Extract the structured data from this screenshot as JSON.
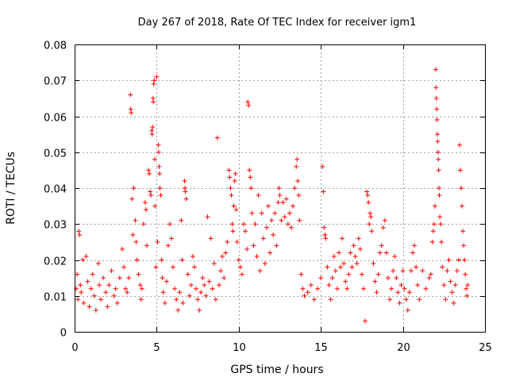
{
  "chart_data": {
    "type": "scatter",
    "title": "Day 267 of 2018, Rate Of TEC Index for receiver igm1",
    "xlabel": "GPS time / hours",
    "ylabel": "ROTI / TECUs",
    "xlim": [
      0,
      25
    ],
    "ylim": [
      0,
      0.08
    ],
    "x_ticks": [
      0,
      5,
      10,
      15,
      20,
      25
    ],
    "x_tick_labels": [
      "0",
      "5",
      "10",
      "15",
      "20",
      "25"
    ],
    "y_ticks": [
      0,
      0.01,
      0.02,
      0.03,
      0.04,
      0.05,
      0.06,
      0.07,
      0.08
    ],
    "y_tick_labels": [
      "0",
      "0.01",
      "0.02",
      "0.03",
      "0.04",
      "0.05",
      "0.06",
      "0.07",
      "0.08"
    ],
    "grid": true,
    "marker": "plus",
    "color": "#ff0000",
    "series": [
      {
        "name": "ROTI",
        "points": [
          [
            0.1,
            0.012
          ],
          [
            0.15,
            0.016
          ],
          [
            0.2,
            0.009
          ],
          [
            0.25,
            0.028
          ],
          [
            0.3,
            0.027
          ],
          [
            0.35,
            0.013
          ],
          [
            0.4,
            0.011
          ],
          [
            0.5,
            0.02
          ],
          [
            0.55,
            0.008
          ],
          [
            0.7,
            0.021
          ],
          [
            0.8,
            0.014
          ],
          [
            0.9,
            0.007
          ],
          [
            1.0,
            0.012
          ],
          [
            1.1,
            0.016
          ],
          [
            1.2,
            0.01
          ],
          [
            1.3,
            0.006
          ],
          [
            1.45,
            0.019
          ],
          [
            1.5,
            0.013
          ],
          [
            1.6,
            0.009
          ],
          [
            1.75,
            0.015
          ],
          [
            1.9,
            0.011
          ],
          [
            2.0,
            0.007
          ],
          [
            2.1,
            0.013
          ],
          [
            2.25,
            0.017
          ],
          [
            2.4,
            0.01
          ],
          [
            2.5,
            0.012
          ],
          [
            2.6,
            0.008
          ],
          [
            2.75,
            0.015
          ],
          [
            2.9,
            0.023
          ],
          [
            3.0,
            0.018
          ],
          [
            3.1,
            0.012
          ],
          [
            3.2,
            0.011
          ],
          [
            3.3,
            0.015
          ],
          [
            3.4,
            0.066
          ],
          [
            3.42,
            0.062
          ],
          [
            3.45,
            0.061
          ],
          [
            3.5,
            0.037
          ],
          [
            3.55,
            0.027
          ],
          [
            3.6,
            0.04
          ],
          [
            3.7,
            0.031
          ],
          [
            3.75,
            0.025
          ],
          [
            3.8,
            0.02
          ],
          [
            3.9,
            0.016
          ],
          [
            4.0,
            0.013
          ],
          [
            4.05,
            0.009
          ],
          [
            4.1,
            0.012
          ],
          [
            4.2,
            0.03
          ],
          [
            4.3,
            0.036
          ],
          [
            4.35,
            0.034
          ],
          [
            4.4,
            0.024
          ],
          [
            4.5,
            0.045
          ],
          [
            4.55,
            0.044
          ],
          [
            4.6,
            0.039
          ],
          [
            4.65,
            0.038
          ],
          [
            4.7,
            0.056
          ],
          [
            4.72,
            0.055
          ],
          [
            4.75,
            0.057
          ],
          [
            4.78,
            0.065
          ],
          [
            4.8,
            0.064
          ],
          [
            4.82,
            0.069
          ],
          [
            4.85,
            0.07
          ],
          [
            4.88,
            0.048
          ],
          [
            4.9,
            0.035
          ],
          [
            4.95,
            0.018
          ],
          [
            5.0,
            0.071
          ],
          [
            5.05,
            0.025
          ],
          [
            5.1,
            0.052
          ],
          [
            5.12,
            0.05
          ],
          [
            5.15,
            0.046
          ],
          [
            5.18,
            0.044
          ],
          [
            5.2,
            0.04
          ],
          [
            5.25,
            0.038
          ],
          [
            5.3,
            0.02
          ],
          [
            5.35,
            0.015
          ],
          [
            5.4,
            0.011
          ],
          [
            5.5,
            0.008
          ],
          [
            5.6,
            0.014
          ],
          [
            5.7,
            0.024
          ],
          [
            5.8,
            0.03
          ],
          [
            5.9,
            0.026
          ],
          [
            6.0,
            0.018
          ],
          [
            6.1,
            0.012
          ],
          [
            6.2,
            0.009
          ],
          [
            6.3,
            0.006
          ],
          [
            6.4,
            0.011
          ],
          [
            6.5,
            0.031
          ],
          [
            6.55,
            0.02
          ],
          [
            6.6,
            0.008
          ],
          [
            6.7,
            0.042
          ],
          [
            6.72,
            0.04
          ],
          [
            6.75,
            0.039
          ],
          [
            6.8,
            0.037
          ],
          [
            6.9,
            0.016
          ],
          [
            7.0,
            0.01
          ],
          [
            7.1,
            0.013
          ],
          [
            7.2,
            0.021
          ],
          [
            7.3,
            0.018
          ],
          [
            7.4,
            0.012
          ],
          [
            7.5,
            0.009
          ],
          [
            7.6,
            0.006
          ],
          [
            7.7,
            0.011
          ],
          [
            7.8,
            0.015
          ],
          [
            7.9,
            0.013
          ],
          [
            8.0,
            0.01
          ],
          [
            8.1,
            0.032
          ],
          [
            8.2,
            0.014
          ],
          [
            8.3,
            0.026
          ],
          [
            8.4,
            0.012
          ],
          [
            8.5,
            0.019
          ],
          [
            8.6,
            0.009
          ],
          [
            8.7,
            0.054
          ],
          [
            8.8,
            0.013
          ],
          [
            8.9,
            0.017
          ],
          [
            9.0,
            0.021
          ],
          [
            9.1,
            0.015
          ],
          [
            9.2,
            0.022
          ],
          [
            9.3,
            0.025
          ],
          [
            9.4,
            0.045
          ],
          [
            9.45,
            0.043
          ],
          [
            9.5,
            0.04
          ],
          [
            9.55,
            0.038
          ],
          [
            9.6,
            0.03
          ],
          [
            9.65,
            0.028
          ],
          [
            9.7,
            0.035
          ],
          [
            9.75,
            0.042
          ],
          [
            9.8,
            0.044
          ],
          [
            9.85,
            0.034
          ],
          [
            9.9,
            0.025
          ],
          [
            10.0,
            0.02
          ],
          [
            10.1,
            0.018
          ],
          [
            10.2,
            0.016
          ],
          [
            10.3,
            0.03
          ],
          [
            10.4,
            0.028
          ],
          [
            10.5,
            0.023
          ],
          [
            10.55,
            0.064
          ],
          [
            10.6,
            0.063
          ],
          [
            10.65,
            0.045
          ],
          [
            10.7,
            0.043
          ],
          [
            10.75,
            0.04
          ],
          [
            10.8,
            0.033
          ],
          [
            10.9,
            0.024
          ],
          [
            11.0,
            0.03
          ],
          [
            11.1,
            0.021
          ],
          [
            11.2,
            0.038
          ],
          [
            11.3,
            0.017
          ],
          [
            11.4,
            0.033
          ],
          [
            11.5,
            0.026
          ],
          [
            11.6,
            0.019
          ],
          [
            11.7,
            0.029
          ],
          [
            11.8,
            0.035
          ],
          [
            11.9,
            0.022
          ],
          [
            12.0,
            0.031
          ],
          [
            12.1,
            0.027
          ],
          [
            12.2,
            0.033
          ],
          [
            12.3,
            0.024
          ],
          [
            12.4,
            0.036
          ],
          [
            12.45,
            0.04
          ],
          [
            12.5,
            0.038
          ],
          [
            12.6,
            0.031
          ],
          [
            12.7,
            0.036
          ],
          [
            12.8,
            0.032
          ],
          [
            12.9,
            0.037
          ],
          [
            13.0,
            0.03
          ],
          [
            13.1,
            0.033
          ],
          [
            13.2,
            0.029
          ],
          [
            13.3,
            0.035
          ],
          [
            13.4,
            0.04
          ],
          [
            13.5,
            0.046
          ],
          [
            13.55,
            0.048
          ],
          [
            13.6,
            0.042
          ],
          [
            13.65,
            0.038
          ],
          [
            13.7,
            0.031
          ],
          [
            13.8,
            0.016
          ],
          [
            13.9,
            0.012
          ],
          [
            14.0,
            0.01
          ],
          [
            14.2,
            0.011
          ],
          [
            14.4,
            0.013
          ],
          [
            14.6,
            0.009
          ],
          [
            14.8,
            0.012
          ],
          [
            15.0,
            0.015
          ],
          [
            15.1,
            0.046
          ],
          [
            15.15,
            0.039
          ],
          [
            15.2,
            0.029
          ],
          [
            15.25,
            0.027
          ],
          [
            15.3,
            0.026
          ],
          [
            15.4,
            0.018
          ],
          [
            15.5,
            0.013
          ],
          [
            15.6,
            0.009
          ],
          [
            15.7,
            0.015
          ],
          [
            15.8,
            0.021
          ],
          [
            15.9,
            0.017
          ],
          [
            16.0,
            0.012
          ],
          [
            16.1,
            0.022
          ],
          [
            16.2,
            0.018
          ],
          [
            16.3,
            0.026
          ],
          [
            16.4,
            0.019
          ],
          [
            16.5,
            0.014
          ],
          [
            16.6,
            0.012
          ],
          [
            16.7,
            0.016
          ],
          [
            16.8,
            0.022
          ],
          [
            16.9,
            0.018
          ],
          [
            17.0,
            0.024
          ],
          [
            17.1,
            0.021
          ],
          [
            17.2,
            0.019
          ],
          [
            17.3,
            0.026
          ],
          [
            17.4,
            0.023
          ],
          [
            17.5,
            0.016
          ],
          [
            17.6,
            0.012
          ],
          [
            17.7,
            0.003
          ],
          [
            17.8,
            0.039
          ],
          [
            17.85,
            0.038
          ],
          [
            17.9,
            0.036
          ],
          [
            17.95,
            0.03
          ],
          [
            18.0,
            0.033
          ],
          [
            18.05,
            0.032
          ],
          [
            18.1,
            0.028
          ],
          [
            18.2,
            0.019
          ],
          [
            18.3,
            0.014
          ],
          [
            18.4,
            0.011
          ],
          [
            18.5,
            0.016
          ],
          [
            18.6,
            0.022
          ],
          [
            18.7,
            0.024
          ],
          [
            18.8,
            0.029
          ],
          [
            18.9,
            0.031
          ],
          [
            19.0,
            0.022
          ],
          [
            19.1,
            0.015
          ],
          [
            19.2,
            0.009
          ],
          [
            19.3,
            0.012
          ],
          [
            19.4,
            0.017
          ],
          [
            19.5,
            0.021
          ],
          [
            19.6,
            0.015
          ],
          [
            19.7,
            0.011
          ],
          [
            19.8,
            0.008
          ],
          [
            19.9,
            0.013
          ],
          [
            20.0,
            0.017
          ],
          [
            20.1,
            0.012
          ],
          [
            20.2,
            0.009
          ],
          [
            20.3,
            0.006
          ],
          [
            20.4,
            0.011
          ],
          [
            20.5,
            0.017
          ],
          [
            20.6,
            0.022
          ],
          [
            20.7,
            0.024
          ],
          [
            20.8,
            0.018
          ],
          [
            20.9,
            0.013
          ],
          [
            21.0,
            0.009
          ],
          [
            21.2,
            0.017
          ],
          [
            21.4,
            0.012
          ],
          [
            21.6,
            0.015
          ],
          [
            21.7,
            0.016
          ],
          [
            21.8,
            0.025
          ],
          [
            21.85,
            0.028
          ],
          [
            21.9,
            0.03
          ],
          [
            21.95,
            0.035
          ],
          [
            22.0,
            0.073
          ],
          [
            22.02,
            0.068
          ],
          [
            22.04,
            0.065
          ],
          [
            22.06,
            0.062
          ],
          [
            22.08,
            0.059
          ],
          [
            22.1,
            0.055
          ],
          [
            22.12,
            0.053
          ],
          [
            22.14,
            0.05
          ],
          [
            22.16,
            0.048
          ],
          [
            22.18,
            0.045
          ],
          [
            22.2,
            0.04
          ],
          [
            22.22,
            0.038
          ],
          [
            22.25,
            0.032
          ],
          [
            22.3,
            0.03
          ],
          [
            22.35,
            0.025
          ],
          [
            22.4,
            0.018
          ],
          [
            22.5,
            0.013
          ],
          [
            22.6,
            0.009
          ],
          [
            22.7,
            0.017
          ],
          [
            22.8,
            0.02
          ],
          [
            22.9,
            0.014
          ],
          [
            23.0,
            0.011
          ],
          [
            23.1,
            0.008
          ],
          [
            23.2,
            0.013
          ],
          [
            23.3,
            0.017
          ],
          [
            23.4,
            0.02
          ],
          [
            23.45,
            0.052
          ],
          [
            23.5,
            0.045
          ],
          [
            23.55,
            0.04
          ],
          [
            23.6,
            0.035
          ],
          [
            23.65,
            0.028
          ],
          [
            23.7,
            0.024
          ],
          [
            23.75,
            0.02
          ],
          [
            23.8,
            0.016
          ],
          [
            23.85,
            0.012
          ],
          [
            23.9,
            0.01
          ],
          [
            23.95,
            0.013
          ]
        ]
      }
    ]
  }
}
